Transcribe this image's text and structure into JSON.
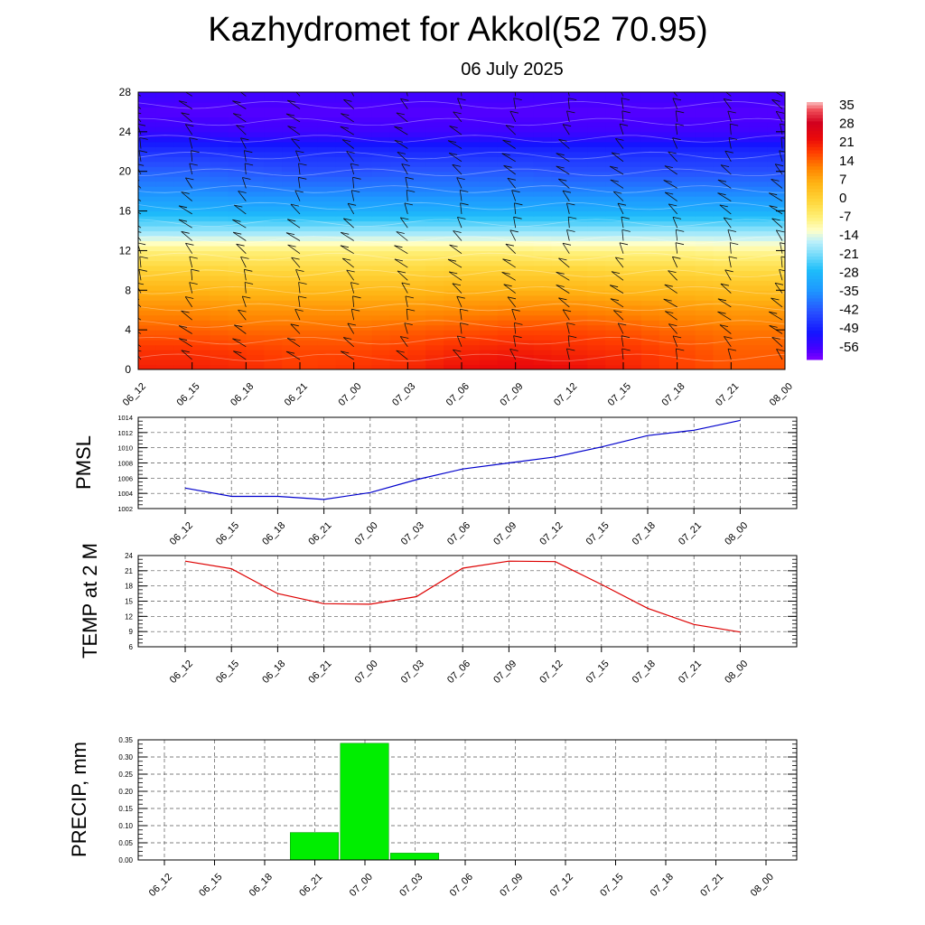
{
  "page": {
    "title": "Kazhydromet for Akkol(52 70.95)",
    "subtitle": "06 July 2025"
  },
  "colors": {
    "pmsl_line": "#0000cc",
    "temp_line": "#dd0000",
    "precip_bar": "#00ee00",
    "grid": "#555555"
  },
  "chart_data": [
    {
      "id": "temperature-cross-section",
      "type": "heatmap",
      "title": "",
      "xlabel": "",
      "ylabel": "",
      "x": [
        "06_12",
        "06_15",
        "06_18",
        "06_21",
        "07_00",
        "07_03",
        "07_06",
        "07_09",
        "07_12",
        "07_15",
        "07_18",
        "07_21",
        "08_00"
      ],
      "yticks": [
        0,
        4,
        8,
        12,
        16,
        20,
        24,
        28
      ],
      "ylim": [
        0,
        28
      ],
      "colorbar": {
        "labels": [
          "35",
          "28",
          "21",
          "14",
          "7",
          "0",
          "-7",
          "-14",
          "-21",
          "-28",
          "-35",
          "-42",
          "-49",
          "-56"
        ],
        "range": [
          -60,
          38
        ]
      },
      "values_by_height": [
        {
          "height": 0,
          "t": [
            22,
            22,
            21,
            19,
            20,
            21,
            24,
            25,
            24,
            22,
            19,
            17,
            17
          ]
        },
        {
          "height": 2,
          "t": [
            20,
            20,
            19,
            18,
            18,
            19,
            21,
            22,
            21,
            20,
            18,
            16,
            16
          ]
        },
        {
          "height": 4,
          "t": [
            16,
            16,
            15,
            15,
            15,
            16,
            17,
            18,
            18,
            17,
            15,
            14,
            14
          ]
        },
        {
          "height": 6,
          "t": [
            12,
            12,
            11,
            11,
            11,
            11,
            12,
            13,
            13,
            12,
            11,
            10,
            10
          ]
        },
        {
          "height": 8,
          "t": [
            7,
            7,
            6,
            6,
            6,
            6,
            7,
            7,
            7,
            6,
            6,
            5,
            5
          ]
        },
        {
          "height": 10,
          "t": [
            1,
            1,
            0,
            0,
            0,
            0,
            1,
            1,
            1,
            0,
            0,
            -1,
            -1
          ]
        },
        {
          "height": 12,
          "t": [
            -6,
            -6,
            -6,
            -6,
            -6,
            -6,
            -6,
            -6,
            -7,
            -7,
            -7,
            -8,
            -8
          ]
        },
        {
          "height": 14,
          "t": [
            -18,
            -18,
            -18,
            -18,
            -18,
            -18,
            -18,
            -18,
            -18,
            -18,
            -18,
            -18,
            -18
          ]
        },
        {
          "height": 16,
          "t": [
            -28,
            -28,
            -29,
            -29,
            -29,
            -29,
            -29,
            -29,
            -29,
            -29,
            -29,
            -29,
            -29
          ]
        },
        {
          "height": 18,
          "t": [
            -35,
            -35,
            -36,
            -36,
            -36,
            -36,
            -36,
            -36,
            -36,
            -36,
            -36,
            -36,
            -36
          ]
        },
        {
          "height": 20,
          "t": [
            -40,
            -40,
            -41,
            -42,
            -42,
            -41,
            -41,
            -41,
            -42,
            -42,
            -42,
            -42,
            -42
          ]
        },
        {
          "height": 22,
          "t": [
            -46,
            -46,
            -47,
            -47,
            -47,
            -47,
            -47,
            -47,
            -47,
            -47,
            -47,
            -47,
            -47
          ]
        },
        {
          "height": 24,
          "t": [
            -54,
            -54,
            -55,
            -55,
            -55,
            -55,
            -55,
            -55,
            -55,
            -55,
            -55,
            -55,
            -55
          ]
        },
        {
          "height": 26,
          "t": [
            -57,
            -57,
            -57,
            -57,
            -57,
            -57,
            -57,
            -57,
            -57,
            -57,
            -57,
            -57,
            -57
          ]
        },
        {
          "height": 28,
          "t": [
            -54,
            -55,
            -55,
            -55,
            -55,
            -55,
            -55,
            -55,
            -55,
            -55,
            -55,
            -55,
            -55
          ]
        }
      ]
    },
    {
      "id": "pmsl",
      "type": "line",
      "ylabel": "PMSL",
      "x": [
        "06_12",
        "06_15",
        "06_18",
        "06_21",
        "07_00",
        "07_03",
        "07_06",
        "07_09",
        "07_12",
        "07_15",
        "07_18",
        "07_21",
        "08_00"
      ],
      "yticks": [
        1002,
        1004,
        1006,
        1008,
        1010,
        1012,
        1014
      ],
      "ylim": [
        1002,
        1014
      ],
      "series": [
        {
          "values": [
            1004.7,
            1003.6,
            1003.6,
            1003.2,
            1004.1,
            1005.8,
            1007.2,
            1008.0,
            1008.8,
            1010.1,
            1011.6,
            1012.3,
            1013.6
          ]
        }
      ]
    },
    {
      "id": "temp2m",
      "type": "line",
      "ylabel": "TEMP at 2 M",
      "x": [
        "06_12",
        "06_15",
        "06_18",
        "06_21",
        "07_00",
        "07_03",
        "07_06",
        "07_09",
        "07_12",
        "07_15",
        "07_18",
        "07_21",
        "08_00"
      ],
      "yticks": [
        6,
        9,
        12,
        15,
        18,
        21,
        24
      ],
      "ylim": [
        6,
        24
      ],
      "series": [
        {
          "values": [
            22.9,
            21.4,
            16.5,
            14.5,
            14.4,
            15.9,
            21.5,
            22.9,
            22.8,
            18.3,
            13.6,
            10.4,
            8.9
          ]
        }
      ]
    },
    {
      "id": "precip",
      "type": "bar",
      "ylabel": "PRECIP, mm",
      "x": [
        "06_12",
        "06_15",
        "06_18",
        "06_21",
        "07_00",
        "07_03",
        "07_06",
        "07_09",
        "07_12",
        "07_15",
        "07_18",
        "07_21",
        "08_00"
      ],
      "yticks": [
        "0.00",
        "0.05",
        "0.10",
        "0.15",
        "0.20",
        "0.25",
        "0.30",
        "0.35"
      ],
      "ylim": [
        0,
        0.35
      ],
      "series": [
        {
          "values": [
            0,
            0,
            0,
            0.08,
            0.34,
            0.02,
            0,
            0,
            0,
            0,
            0,
            0,
            0
          ]
        }
      ]
    }
  ]
}
